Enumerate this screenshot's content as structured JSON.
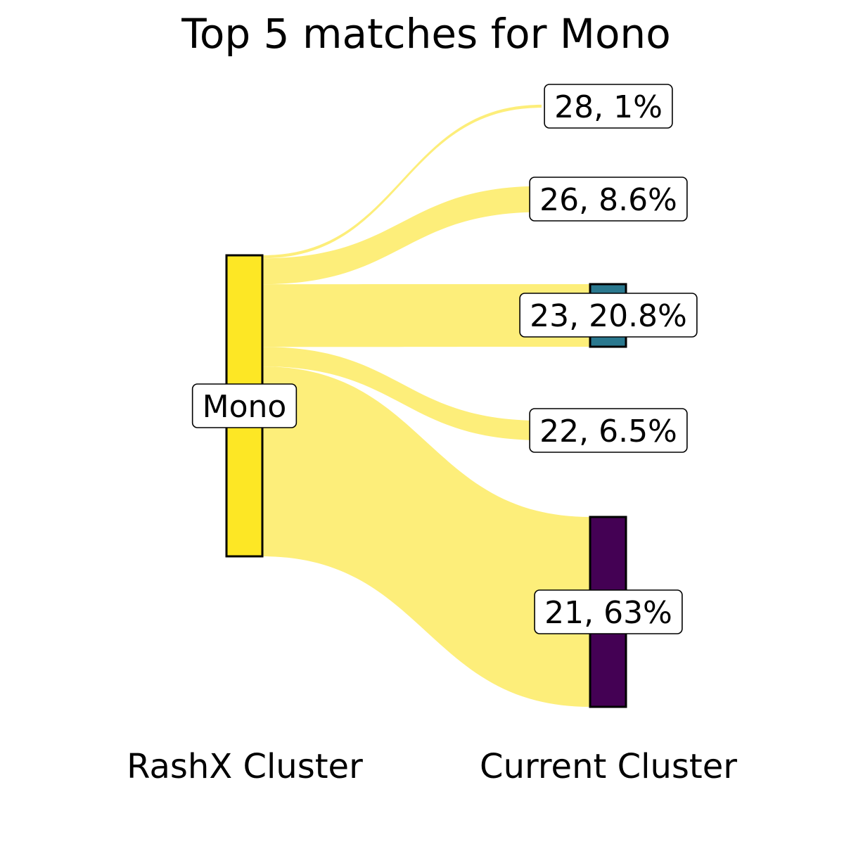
{
  "chart_data": {
    "type": "sankey",
    "title": "Top 5 matches for Mono",
    "left_axis_label": "RashX Cluster",
    "right_axis_label": "Current Cluster",
    "source": {
      "name": "Mono",
      "color": "#fde725"
    },
    "flow_color": "#fdee7a",
    "targets": [
      {
        "cluster": "28",
        "percent": 1.0,
        "label": "28, 1%",
        "color": "#ffffff",
        "show_bar": false
      },
      {
        "cluster": "26",
        "percent": 8.6,
        "label": "26, 8.6%",
        "color": "#ffffff",
        "show_bar": false
      },
      {
        "cluster": "23",
        "percent": 20.8,
        "label": "23, 20.8%",
        "color": "#2a788e",
        "show_bar": true
      },
      {
        "cluster": "22",
        "percent": 6.5,
        "label": "22, 6.5%",
        "color": "#ffffff",
        "show_bar": false
      },
      {
        "cluster": "21",
        "percent": 63.0,
        "label": "21, 63%",
        "color": "#440154",
        "show_bar": true
      }
    ]
  }
}
